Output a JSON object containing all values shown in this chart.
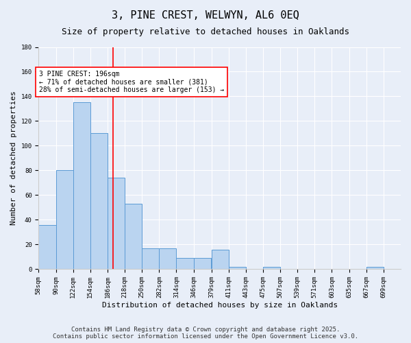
{
  "title": "3, PINE CREST, WELWYN, AL6 0EQ",
  "subtitle": "Size of property relative to detached houses in Oaklands",
  "xlabel": "Distribution of detached houses by size in Oaklands",
  "ylabel": "Number of detached properties",
  "bin_edges": [
    58,
    90,
    122,
    154,
    186,
    218,
    250,
    282,
    314,
    346,
    379,
    411,
    443,
    475,
    507,
    539,
    571,
    603,
    635,
    667,
    699
  ],
  "bar_heights": [
    36,
    80,
    135,
    110,
    74,
    53,
    17,
    17,
    9,
    9,
    16,
    2,
    0,
    2,
    0,
    0,
    0,
    0,
    0,
    2
  ],
  "bar_color": "#bad4f0",
  "bar_edge_color": "#5b9bd5",
  "vline_x": 196,
  "vline_color": "red",
  "annotation_text": "3 PINE CREST: 196sqm\n← 71% of detached houses are smaller (381)\n28% of semi-detached houses are larger (153) →",
  "annotation_box_color": "white",
  "annotation_box_edge_color": "red",
  "ylim": [
    0,
    180
  ],
  "yticks": [
    0,
    20,
    40,
    60,
    80,
    100,
    120,
    140,
    160,
    180
  ],
  "background_color": "#e8eef8",
  "footer_text": "Contains HM Land Registry data © Crown copyright and database right 2025.\nContains public sector information licensed under the Open Government Licence v3.0.",
  "title_fontsize": 11,
  "subtitle_fontsize": 9,
  "annotation_fontsize": 7,
  "footer_fontsize": 6.5,
  "ylabel_fontsize": 8,
  "xlabel_fontsize": 8,
  "tick_fontsize": 6.5
}
